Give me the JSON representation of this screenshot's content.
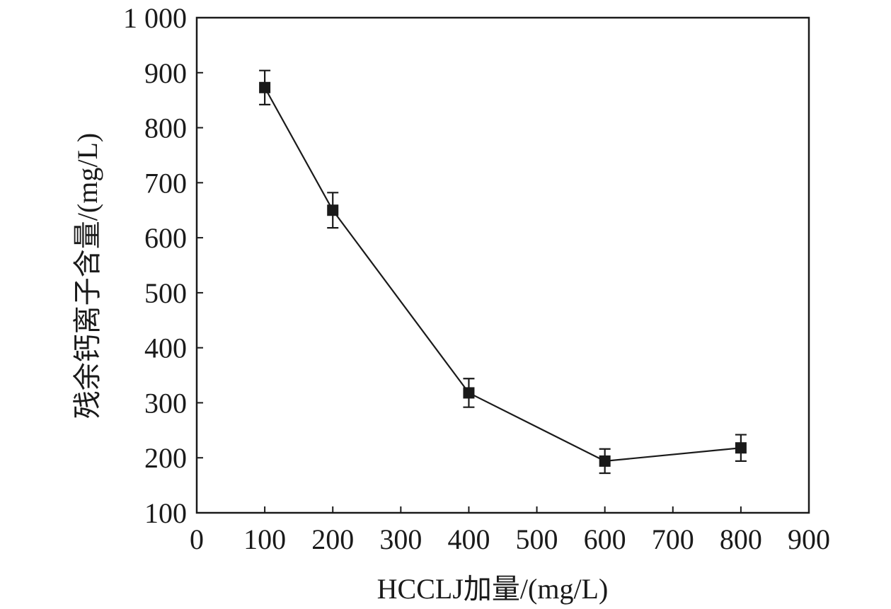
{
  "chart_data": {
    "type": "line",
    "xlabel": "HCCLJ加量/(mg/L)",
    "ylabel": "残余钙离子含量/(mg/L)",
    "xlim": [
      0,
      900
    ],
    "ylim": [
      100,
      1000
    ],
    "x_ticks": [
      {
        "value": 0,
        "label": "0"
      },
      {
        "value": 100,
        "label": "100"
      },
      {
        "value": 200,
        "label": "200"
      },
      {
        "value": 300,
        "label": "300"
      },
      {
        "value": 400,
        "label": "400"
      },
      {
        "value": 500,
        "label": "500"
      },
      {
        "value": 600,
        "label": "600"
      },
      {
        "value": 700,
        "label": "700"
      },
      {
        "value": 800,
        "label": "800"
      },
      {
        "value": 900,
        "label": "900"
      }
    ],
    "y_ticks": [
      {
        "value": 100,
        "label": "100"
      },
      {
        "value": 200,
        "label": "200"
      },
      {
        "value": 300,
        "label": "300"
      },
      {
        "value": 400,
        "label": "400"
      },
      {
        "value": 500,
        "label": "500"
      },
      {
        "value": 600,
        "label": "600"
      },
      {
        "value": 700,
        "label": "700"
      },
      {
        "value": 800,
        "label": "800"
      },
      {
        "value": 900,
        "label": "900"
      },
      {
        "value": 1000,
        "label": "1 000"
      }
    ],
    "grid": false,
    "series": [
      {
        "marker": "square",
        "color": "#1a1a1a",
        "x": [
          100,
          200,
          400,
          600,
          800
        ],
        "y": [
          873,
          650,
          318,
          194,
          218
        ],
        "error": [
          31,
          32,
          26,
          22,
          24
        ]
      }
    ]
  }
}
